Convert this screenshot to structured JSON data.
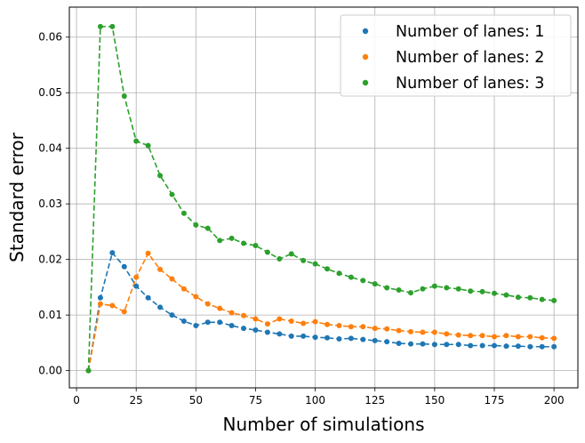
{
  "chart_data": {
    "type": "scatter",
    "xlabel": "Number of simulations",
    "ylabel": "Standard error",
    "xlim": [
      -3,
      210
    ],
    "ylim": [
      -0.0031,
      0.0654
    ],
    "xticks": [
      0,
      25,
      50,
      75,
      100,
      125,
      150,
      175,
      200
    ],
    "xtick_labels": [
      "0",
      "25",
      "50",
      "75",
      "100",
      "125",
      "150",
      "175",
      "200"
    ],
    "yticks": [
      0.0,
      0.01,
      0.02,
      0.03,
      0.04,
      0.05,
      0.06
    ],
    "ytick_labels": [
      "0.00",
      "0.01",
      "0.02",
      "0.03",
      "0.04",
      "0.05",
      "0.06"
    ],
    "grid": true,
    "legend_position": "top-right",
    "connect_points": "dashed",
    "x": [
      5,
      10,
      15,
      20,
      25,
      30,
      35,
      40,
      45,
      50,
      55,
      60,
      65,
      70,
      75,
      80,
      85,
      90,
      95,
      100,
      105,
      110,
      115,
      120,
      125,
      130,
      135,
      140,
      145,
      150,
      155,
      160,
      165,
      170,
      175,
      180,
      185,
      190,
      195,
      200
    ],
    "series": [
      {
        "name": "Number of lanes: 1",
        "color": "#1f77b4",
        "values": [
          0.0,
          0.0131,
          0.0212,
          0.0187,
          0.0152,
          0.0131,
          0.0114,
          0.01,
          0.0089,
          0.0081,
          0.0087,
          0.0087,
          0.0081,
          0.0076,
          0.0073,
          0.0069,
          0.0066,
          0.0062,
          0.0062,
          0.006,
          0.0059,
          0.0057,
          0.0058,
          0.0056,
          0.0054,
          0.0052,
          0.0049,
          0.0048,
          0.0048,
          0.0047,
          0.0047,
          0.0047,
          0.0045,
          0.0045,
          0.0045,
          0.0044,
          0.0044,
          0.0043,
          0.0043,
          0.0043
        ]
      },
      {
        "name": "Number of lanes: 2",
        "color": "#ff7f0e",
        "values": [
          0.0,
          0.012,
          0.0117,
          0.0106,
          0.0168,
          0.0211,
          0.0182,
          0.0165,
          0.0147,
          0.0133,
          0.012,
          0.0112,
          0.0104,
          0.0099,
          0.0093,
          0.0084,
          0.0093,
          0.0089,
          0.0085,
          0.0088,
          0.0083,
          0.0081,
          0.0079,
          0.0079,
          0.0076,
          0.0075,
          0.0072,
          0.007,
          0.0069,
          0.0069,
          0.0066,
          0.0064,
          0.0063,
          0.0063,
          0.0061,
          0.0063,
          0.0061,
          0.0061,
          0.0059,
          0.0058
        ]
      },
      {
        "name": "Number of lanes: 3",
        "color": "#2ca02c",
        "values": [
          0.0,
          0.0619,
          0.0619,
          0.0494,
          0.0413,
          0.0405,
          0.0351,
          0.0317,
          0.0283,
          0.0262,
          0.0256,
          0.0234,
          0.0238,
          0.0229,
          0.0225,
          0.0213,
          0.0201,
          0.021,
          0.0198,
          0.0192,
          0.0183,
          0.0175,
          0.0168,
          0.0162,
          0.0156,
          0.0149,
          0.0145,
          0.014,
          0.0147,
          0.0152,
          0.0149,
          0.0147,
          0.0143,
          0.0142,
          0.0139,
          0.0136,
          0.0132,
          0.0131,
          0.0128,
          0.0126
        ]
      }
    ]
  }
}
